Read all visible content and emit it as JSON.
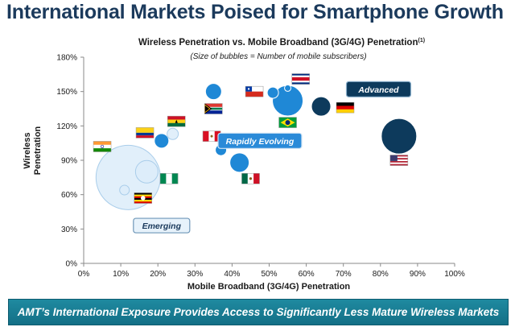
{
  "page": {
    "title": "International Markets Poised for Smartphone Growth",
    "footer": "AMT’s International Exposure Provides Access to Significantly Less Mature Wireless Markets"
  },
  "chart_data": {
    "type": "scatter",
    "title": "Wireless Penetration vs. Mobile Broadband (3G/4G) Penetration",
    "title_superscript": "(1)",
    "subtitle": "(Size of bubbles = Number of mobile subscribers)",
    "xlabel": "Mobile Broadband (3G/4G) Penetration",
    "ylabel": "Wireless Penetration",
    "xlim": [
      0,
      100
    ],
    "ylim": [
      0,
      180
    ],
    "x_ticks": [
      "0%",
      "10%",
      "20%",
      "30%",
      "40%",
      "50%",
      "60%",
      "70%",
      "80%",
      "90%",
      "100%"
    ],
    "y_ticks": [
      "0%",
      "30%",
      "60%",
      "90%",
      "120%",
      "150%",
      "180%"
    ],
    "grid": false,
    "colors": {
      "emerging": "#dcecf9",
      "evolving": "#1f88d6",
      "advanced": "#0d3a5c",
      "axis": "#8a8a8a"
    },
    "groups": [
      {
        "name": "Emerging",
        "fill": "#dcecf9"
      },
      {
        "name": "Rapidly Evolving",
        "fill": "#1f88d6"
      },
      {
        "name": "Advanced",
        "fill": "#0d3a5c"
      }
    ],
    "points": [
      {
        "group": "Emerging",
        "x": 12,
        "y": 75,
        "r": 40
      },
      {
        "group": "Emerging",
        "x": 17,
        "y": 80,
        "r": 14
      },
      {
        "group": "Emerging",
        "x": 11,
        "y": 64,
        "r": 6
      },
      {
        "group": "Emerging",
        "x": 24,
        "y": 113,
        "r": 7
      },
      {
        "group": "Rapidly Evolving",
        "x": 21,
        "y": 107,
        "r": 9
      },
      {
        "group": "Rapidly Evolving",
        "x": 35,
        "y": 150,
        "r": 10
      },
      {
        "group": "Rapidly Evolving",
        "x": 37,
        "y": 99,
        "r": 7
      },
      {
        "group": "Rapidly Evolving",
        "x": 42,
        "y": 88,
        "r": 12
      },
      {
        "group": "Rapidly Evolving",
        "x": 51,
        "y": 149,
        "r": 7
      },
      {
        "group": "Rapidly Evolving",
        "x": 55,
        "y": 142,
        "r": 19
      },
      {
        "group": "Rapidly Evolving",
        "x": 55,
        "y": 153,
        "r": 4
      },
      {
        "group": "Advanced",
        "x": 64,
        "y": 137,
        "r": 12
      },
      {
        "group": "Advanced",
        "x": 85,
        "y": 111,
        "r": 22
      }
    ],
    "flags": [
      {
        "country": "india",
        "x": 5,
        "y": 102
      },
      {
        "country": "colombia",
        "x": 16.5,
        "y": 114
      },
      {
        "country": "ghana",
        "x": 25,
        "y": 124
      },
      {
        "country": "nigeria",
        "x": 23,
        "y": 74
      },
      {
        "country": "uganda",
        "x": 16,
        "y": 57
      },
      {
        "country": "south-africa",
        "x": 35,
        "y": 135
      },
      {
        "country": "peru",
        "x": 34.5,
        "y": 111
      },
      {
        "country": "mexico",
        "x": 45,
        "y": 74
      },
      {
        "country": "chile",
        "x": 46,
        "y": 150
      },
      {
        "country": "costa-rica",
        "x": 58.5,
        "y": 161
      },
      {
        "country": "brazil",
        "x": 55,
        "y": 123
      },
      {
        "country": "germany",
        "x": 70.5,
        "y": 136
      },
      {
        "country": "united-states",
        "x": 85,
        "y": 90
      }
    ],
    "labels": [
      {
        "text": "Emerging",
        "x": 21,
        "y": 33,
        "style": "emerging"
      },
      {
        "text": "Rapidly Evolving",
        "x": 47.5,
        "y": 107,
        "style": "evolving"
      },
      {
        "text": "Advanced",
        "x": 79.5,
        "y": 152,
        "style": "advanced"
      }
    ]
  }
}
